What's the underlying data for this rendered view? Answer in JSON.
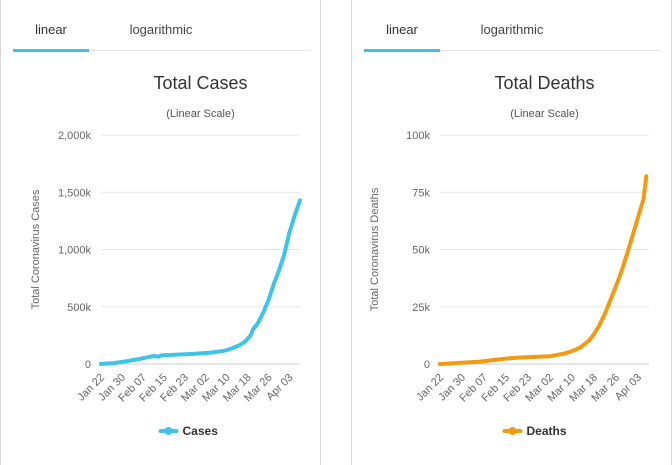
{
  "tabs": {
    "linear": "linear",
    "logarithmic": "logarithmic"
  },
  "chart_data": [
    {
      "type": "line",
      "title": "Total Cases",
      "subtitle": "(Linear Scale)",
      "ylabel": "Total Coronavirus Cases",
      "xlabel": "",
      "ylim": [
        0,
        2000000
      ],
      "y_ticks": [
        0,
        500000,
        1000000,
        1500000,
        2000000
      ],
      "y_tick_labels": [
        "0",
        "500k",
        "1,000k",
        "1,500k",
        "2,000k"
      ],
      "x_tick_labels": [
        "Jan 22",
        "Jan 30",
        "Feb 07",
        "Feb 15",
        "Feb 23",
        "Mar 02",
        "Mar 10",
        "Mar 18",
        "Mar 26",
        "Apr 03"
      ],
      "x_tick_day_index": [
        0,
        8,
        16,
        24,
        32,
        40,
        48,
        56,
        64,
        72
      ],
      "legend": "Cases",
      "color": "#3fc3e8",
      "series": [
        {
          "name": "Cases",
          "x": [
            0,
            5,
            10,
            15,
            20,
            22,
            23,
            28,
            35,
            42,
            47,
            50,
            53,
            55,
            57,
            58,
            60,
            62,
            64,
            66,
            68,
            70,
            72,
            74,
            76
          ],
          "values": [
            500,
            8000,
            25000,
            45000,
            70000,
            65000,
            75000,
            80000,
            88000,
            100000,
            115000,
            135000,
            165000,
            195000,
            245000,
            300000,
            360000,
            450000,
            560000,
            700000,
            820000,
            960000,
            1150000,
            1300000,
            1430000
          ]
        }
      ]
    },
    {
      "type": "line",
      "title": "Total Deaths",
      "subtitle": "(Linear Scale)",
      "ylabel": "Total Coronavirus Deaths",
      "xlabel": "",
      "ylim": [
        0,
        100000
      ],
      "y_ticks": [
        0,
        25000,
        50000,
        75000,
        100000
      ],
      "y_tick_labels": [
        "0",
        "25k",
        "50k",
        "75k",
        "100k"
      ],
      "x_tick_labels": [
        "Jan 22",
        "Jan 30",
        "Feb 07",
        "Feb 15",
        "Feb 23",
        "Mar 02",
        "Mar 10",
        "Mar 18",
        "Mar 26",
        "Apr 03"
      ],
      "x_tick_day_index": [
        0,
        8,
        16,
        24,
        32,
        40,
        48,
        56,
        64,
        72
      ],
      "legend": "Deaths",
      "color": "#f29a12",
      "series": [
        {
          "name": "Deaths",
          "x": [
            0,
            5,
            10,
            15,
            20,
            25,
            30,
            35,
            40,
            45,
            48,
            51,
            54,
            56,
            58,
            60,
            62,
            64,
            66,
            68,
            70,
            72,
            74,
            75
          ],
          "values": [
            17,
            300,
            700,
            1100,
            1800,
            2500,
            2900,
            3100,
            3400,
            4500,
            5600,
            7200,
            10000,
            13000,
            17000,
            22000,
            28000,
            34000,
            40500,
            48000,
            56000,
            64000,
            72000,
            82000
          ]
        }
      ]
    }
  ]
}
